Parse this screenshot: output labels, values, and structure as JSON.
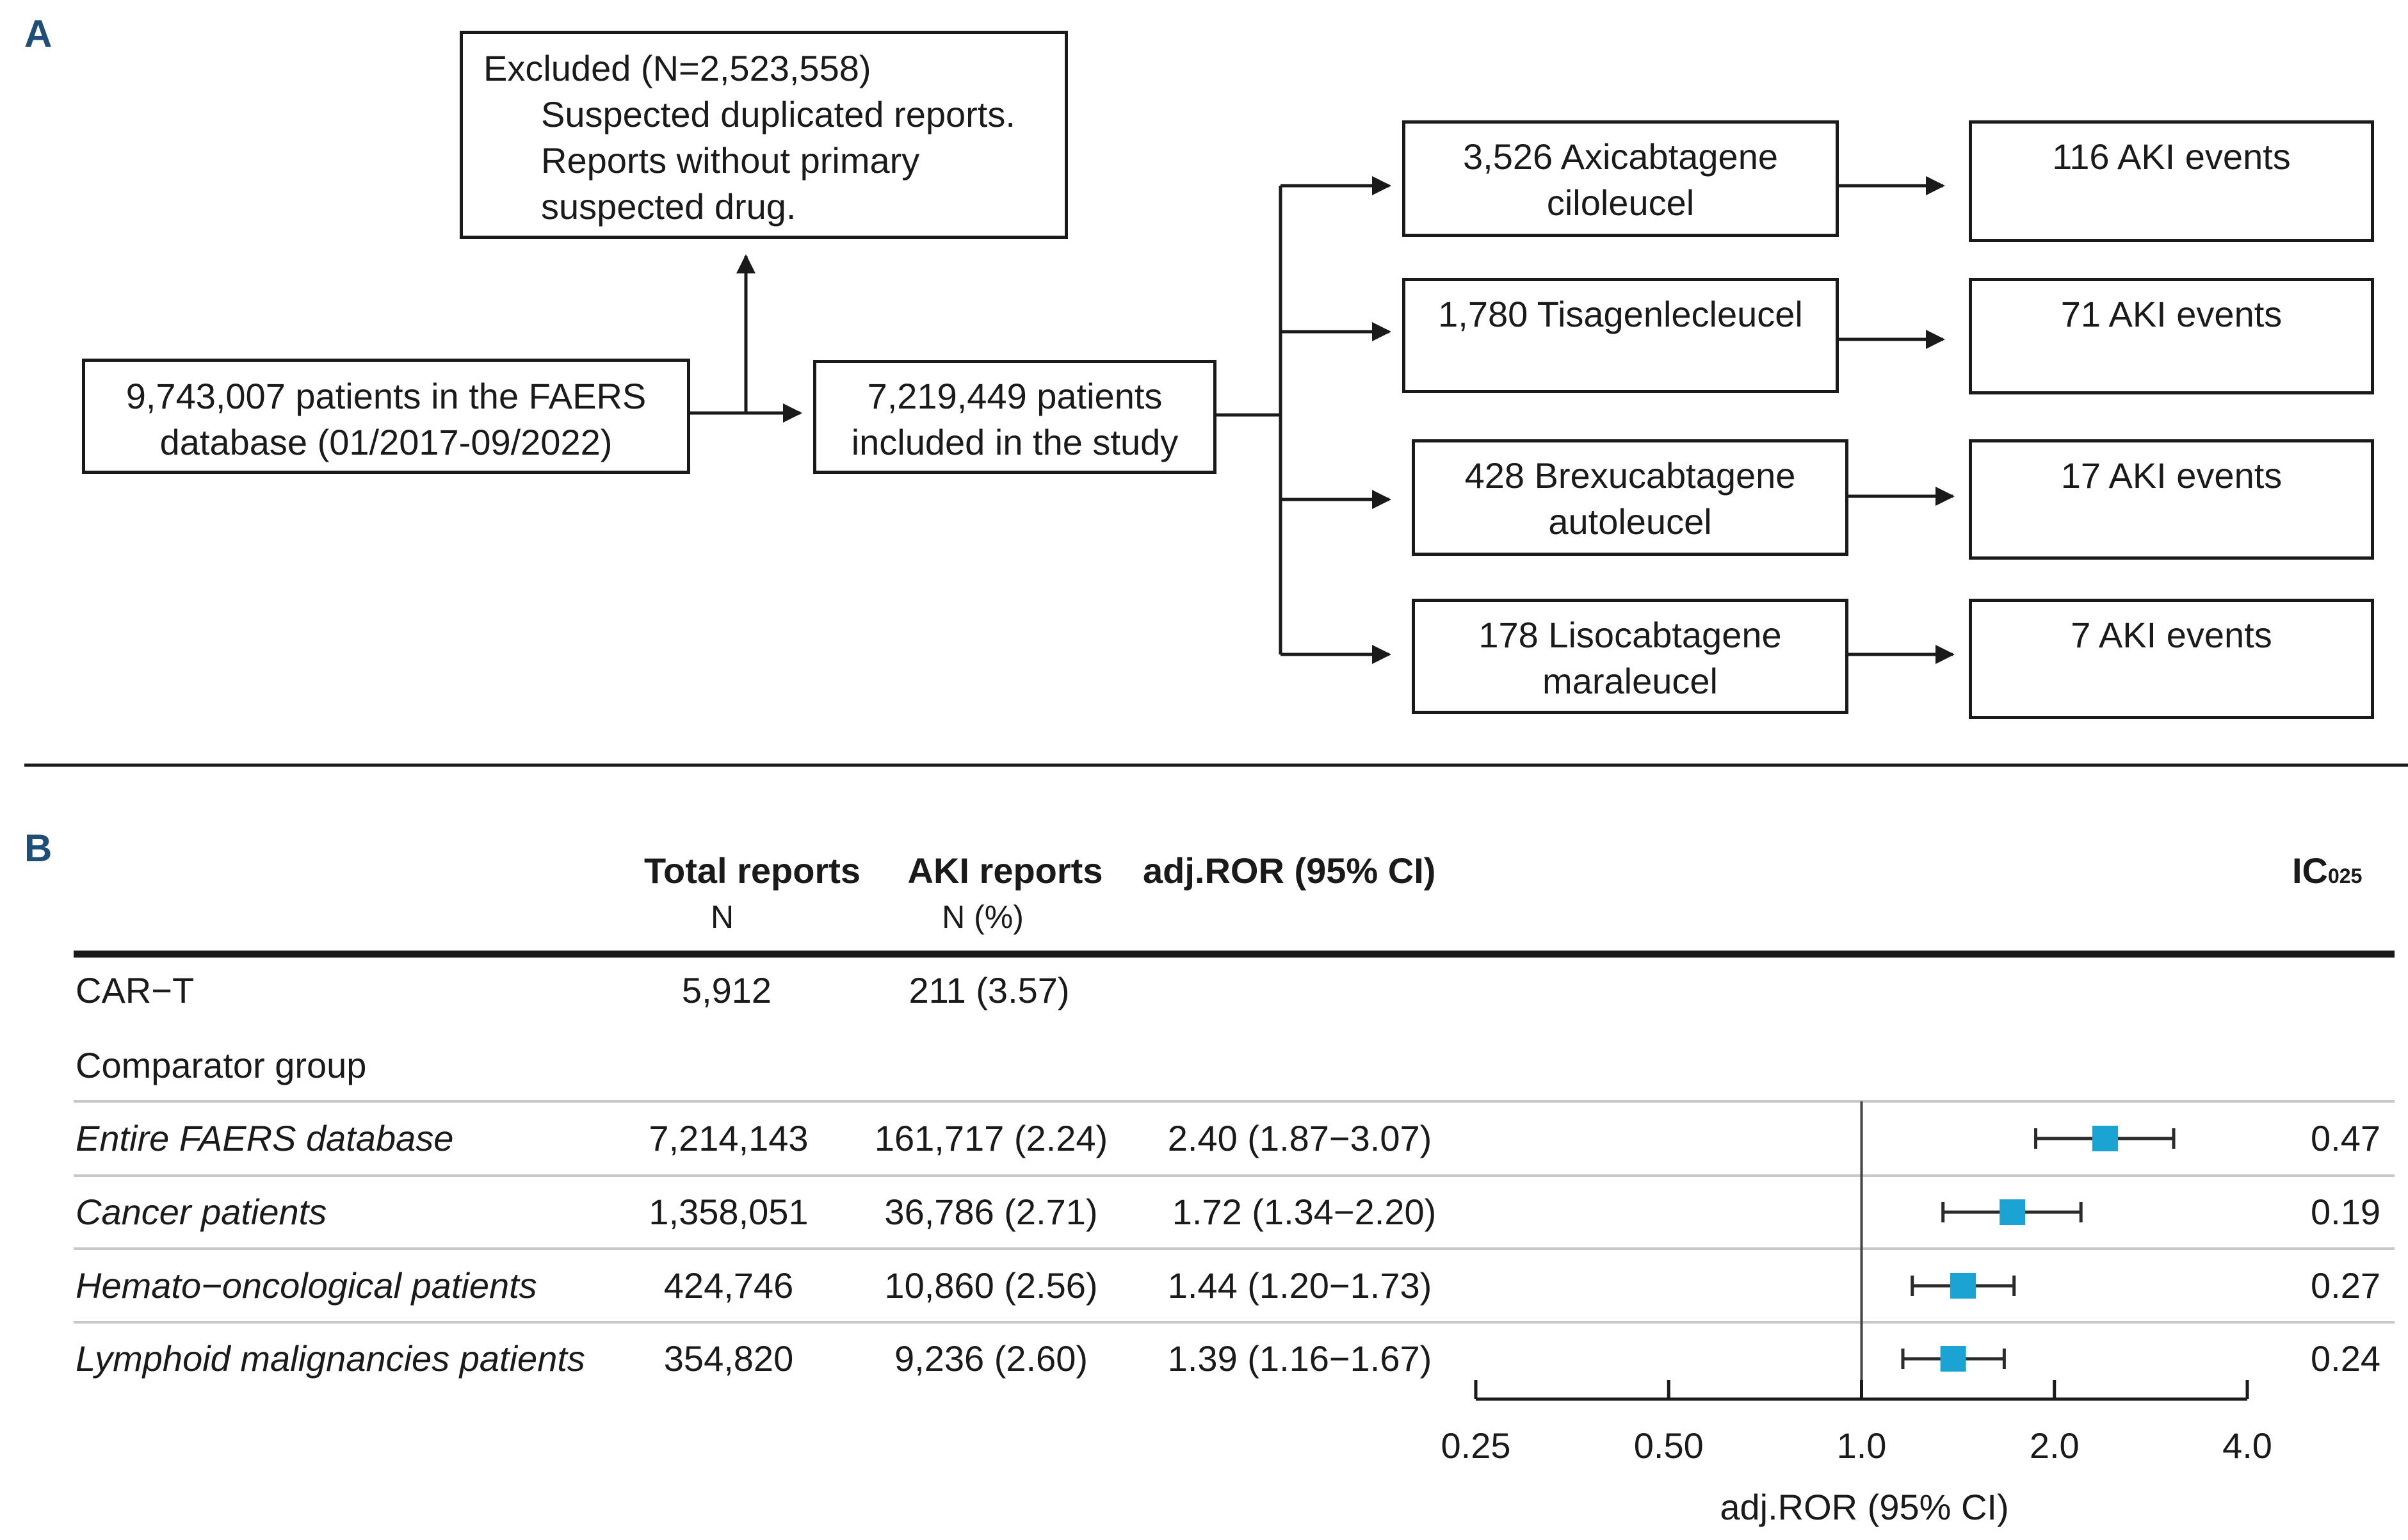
{
  "panel_a": {
    "label": "A",
    "excluded": {
      "title": "Excluded (N=2,523,558)",
      "line1": "Suspected duplicated reports.",
      "line2": "Reports without primary",
      "line3": "suspected drug."
    },
    "source": {
      "line1": "9,743,007 patients in the FAERS",
      "line2": "database (01/2017-09/2022)"
    },
    "included": {
      "line1": "7,219,449 patients",
      "line2": "included in the study"
    },
    "drugs": [
      {
        "line1": "3,526 Axicabtagene",
        "line2": "ciloleucel",
        "events": "116 AKI events"
      },
      {
        "line1": "1,780 Tisagenlecleucel",
        "line2": "",
        "events": "71 AKI events"
      },
      {
        "line1": "428 Brexucabtagene",
        "line2": "autoleucel",
        "events": "17 AKI events"
      },
      {
        "line1": "178 Lisocabtagene",
        "line2": "maraleucel",
        "events": "7 AKI events"
      }
    ]
  },
  "panel_b": {
    "label": "B",
    "headers": {
      "total": "Total reports",
      "total_sub": "N",
      "aki": "AKI reports",
      "aki_sub": "N (%)",
      "ror": "adj.ROR (95% CI)",
      "ic": "IC",
      "ic_sub": "025"
    },
    "cart": {
      "label": "CAR−T",
      "total": "5,912",
      "aki": "211 (3.57)"
    },
    "comparator_label": "Comparator group"
  },
  "chart_data": {
    "type": "forest",
    "xlabel": "adj.ROR (95% CI)",
    "x_scale": "log2",
    "xlim": [
      0.25,
      4.0
    ],
    "ticks": [
      {
        "value": 0.25,
        "label": "0.25"
      },
      {
        "value": 0.5,
        "label": "0.50"
      },
      {
        "value": 1.0,
        "label": "1.0"
      },
      {
        "value": 2.0,
        "label": "2.0"
      },
      {
        "value": 4.0,
        "label": "4.0"
      }
    ],
    "reference_line": 1.0,
    "marker_color": "#1ba3d4",
    "rows": [
      {
        "label": "Entire FAERS database",
        "total": "7,214,143",
        "aki": "161,717 (2.24)",
        "ror_text": "2.40 (1.87−3.07)",
        "ror": 2.4,
        "lo": 1.87,
        "hi": 3.07,
        "ic": "0.47"
      },
      {
        "label": "Cancer patients",
        "total": "1,358,051",
        "aki": "36,786 (2.71)",
        "ror_text": "1.72 (1.34−2.20)",
        "ror": 1.72,
        "lo": 1.34,
        "hi": 2.2,
        "ic": "0.19"
      },
      {
        "label": "Hemato−oncological patients",
        "total": "424,746",
        "aki": "10,860 (2.56)",
        "ror_text": "1.44 (1.20−1.73)",
        "ror": 1.44,
        "lo": 1.2,
        "hi": 1.73,
        "ic": "0.27"
      },
      {
        "label": "Lymphoid malignancies patients",
        "total": "354,820",
        "aki": "9,236 (2.60)",
        "ror_text": "1.39 (1.16−1.67)",
        "ror": 1.39,
        "lo": 1.16,
        "hi": 1.67,
        "ic": "0.24"
      }
    ]
  }
}
